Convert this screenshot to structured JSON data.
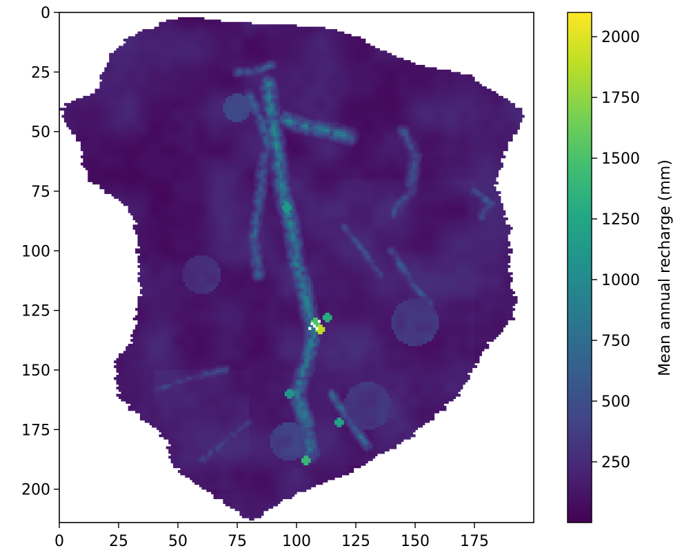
{
  "chart_data": {
    "type": "heatmap",
    "title": "",
    "xlabel": "",
    "ylabel": "",
    "xlim": [
      0,
      200
    ],
    "ylim": [
      214,
      0
    ],
    "x_ticks": [
      "0",
      "25",
      "50",
      "75",
      "100",
      "125",
      "150",
      "175"
    ],
    "y_ticks": [
      "0",
      "25",
      "50",
      "75",
      "100",
      "125",
      "150",
      "175",
      "200"
    ],
    "colormap": "viridis",
    "background_value": 60,
    "colorbar": {
      "label": "Mean annual recharge (mm)",
      "range": [
        0,
        2100
      ],
      "ticks": [
        "250",
        "500",
        "750",
        "1000",
        "1250",
        "1500",
        "1750",
        "2000"
      ]
    },
    "features": [
      {
        "type": "channel",
        "points": [
          [
            88,
            30
          ],
          [
            90,
            45
          ],
          [
            92,
            60
          ],
          [
            94,
            75
          ],
          [
            98,
            90
          ],
          [
            100,
            105
          ],
          [
            103,
            115
          ],
          [
            105,
            125
          ],
          [
            107,
            135
          ],
          [
            104,
            148
          ],
          [
            100,
            160
          ],
          [
            104,
            172
          ],
          [
            106,
            185
          ]
        ],
        "value": 900,
        "width": 5
      },
      {
        "type": "channel",
        "points": [
          [
            80,
            35
          ],
          [
            85,
            45
          ],
          [
            88,
            55
          ],
          [
            86,
            65
          ],
          [
            84,
            80
          ],
          [
            82,
            95
          ],
          [
            84,
            110
          ]
        ],
        "value": 650,
        "width": 4
      },
      {
        "type": "channel",
        "points": [
          [
            95,
            45
          ],
          [
            105,
            48
          ],
          [
            115,
            50
          ],
          [
            122,
            52
          ]
        ],
        "value": 850,
        "width": 5
      },
      {
        "type": "channel",
        "points": [
          [
            75,
            25
          ],
          [
            82,
            25
          ],
          [
            90,
            22
          ]
        ],
        "value": 600,
        "width": 3
      },
      {
        "type": "channel",
        "points": [
          [
            145,
            50
          ],
          [
            150,
            60
          ],
          [
            148,
            75
          ],
          [
            140,
            85
          ]
        ],
        "value": 550,
        "width": 4
      },
      {
        "type": "channel",
        "points": [
          [
            140,
            100
          ],
          [
            148,
            112
          ],
          [
            156,
            122
          ]
        ],
        "value": 600,
        "width": 3
      },
      {
        "type": "channel",
        "points": [
          [
            120,
            90
          ],
          [
            128,
            100
          ],
          [
            135,
            110
          ]
        ],
        "value": 550,
        "width": 3
      },
      {
        "type": "channel",
        "points": [
          [
            175,
            75
          ],
          [
            182,
            80
          ],
          [
            178,
            86
          ]
        ],
        "value": 600,
        "width": 3
      },
      {
        "type": "channel",
        "points": [
          [
            115,
            160
          ],
          [
            120,
            168
          ],
          [
            125,
            175
          ],
          [
            130,
            182
          ]
        ],
        "value": 750,
        "width": 3
      },
      {
        "type": "channel",
        "points": [
          [
            70,
            150
          ],
          [
            60,
            152
          ],
          [
            50,
            155
          ],
          [
            42,
            158
          ]
        ],
        "value": 450,
        "width": 3
      },
      {
        "type": "channel",
        "points": [
          [
            80,
            172
          ],
          [
            70,
            180
          ],
          [
            60,
            188
          ]
        ],
        "value": 450,
        "width": 3
      },
      {
        "type": "blob",
        "x": 97,
        "y": 180,
        "r": 8,
        "value": 450
      },
      {
        "type": "blob",
        "x": 75,
        "y": 40,
        "r": 6,
        "value": 500
      },
      {
        "type": "blob",
        "x": 150,
        "y": 130,
        "r": 10,
        "value": 380
      },
      {
        "type": "blob",
        "x": 60,
        "y": 110,
        "r": 8,
        "value": 330
      },
      {
        "type": "blob",
        "x": 130,
        "y": 165,
        "r": 10,
        "value": 370
      },
      {
        "type": "hotspot",
        "x": 110,
        "y": 133,
        "value": 1900
      },
      {
        "type": "hotspot",
        "x": 108,
        "y": 130,
        "value": 1500
      },
      {
        "type": "hotspot",
        "x": 113,
        "y": 128,
        "value": 1300
      },
      {
        "type": "hotspot",
        "x": 104,
        "y": 188,
        "value": 1400
      },
      {
        "type": "hotspot",
        "x": 118,
        "y": 172,
        "value": 1200
      },
      {
        "type": "hotspot",
        "x": 97,
        "y": 160,
        "value": 1100
      },
      {
        "type": "hotspot",
        "x": 96,
        "y": 82,
        "value": 1150
      }
    ]
  }
}
